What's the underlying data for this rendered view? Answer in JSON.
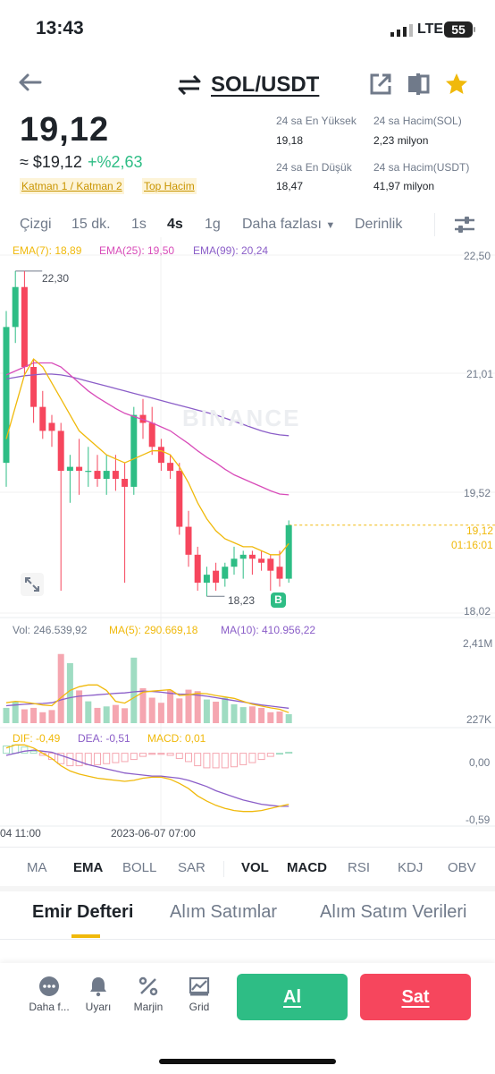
{
  "status_bar": {
    "time": "13:43",
    "network": "LTE",
    "battery": "55"
  },
  "header": {
    "pair": "SOL/USDT",
    "icons": [
      "back-arrow-icon",
      "swap-icon",
      "share-icon",
      "split-view-icon",
      "star-icon"
    ],
    "star_color": "#f0b90b"
  },
  "ticker": {
    "price": "19,12",
    "approx_price": "≈ $19,12",
    "change": "+%2,63",
    "tags": [
      "Katman 1 / Katman 2",
      "Top Hacim"
    ],
    "stats": {
      "high_label": "24 sa En Yüksek",
      "high_value": "19,18",
      "low_label": "24 sa En Düşük",
      "low_value": "18,47",
      "vol_sol_label": "24 sa Hacim(SOL)",
      "vol_sol_value": "2,23 milyon",
      "vol_usdt_label": "24 sa Hacim(USDT)",
      "vol_usdt_value": "41,97 milyon"
    }
  },
  "timeframes": {
    "items": [
      "Çizgi",
      "15 dk.",
      "1s",
      "4s",
      "1g",
      "Daha fazlası",
      "Derinlik"
    ],
    "active": "4s"
  },
  "main_chart": {
    "legend": {
      "ema7": "EMA(7): 18,89",
      "ema25": "EMA(25): 19,50",
      "ema99": "EMA(99): 20,24"
    },
    "y_ticks": [
      "22,50",
      "21,01",
      "19,52",
      "18,02"
    ],
    "current_price": "19,12",
    "countdown": "01:16:01",
    "high_marker": "22,30",
    "low_marker": "18,23",
    "buy_marker": "B",
    "watermark": "BINANCE"
  },
  "volume_chart": {
    "legend": {
      "vol": "Vol: 246.539,92",
      "ma5": "MA(5): 290.669,18",
      "ma10": "MA(10): 410.956,22"
    },
    "y_ticks": [
      "2,41M",
      "227K"
    ]
  },
  "macd_chart": {
    "legend": {
      "dif": "DIF: -0,49",
      "dea": "DEA: -0,51",
      "macd": "MACD: 0,01"
    },
    "y_ticks": [
      "0,00",
      "-0,59"
    ]
  },
  "x_axis": [
    "04 11:00",
    "2023-06-07 07:00"
  ],
  "indicator_tabs": {
    "main": [
      "MA",
      "EMA",
      "BOLL",
      "SAR"
    ],
    "sub": [
      "VOL",
      "MACD",
      "RSI",
      "KDJ",
      "OBV"
    ],
    "active": [
      "EMA",
      "VOL",
      "MACD"
    ]
  },
  "section_tabs": {
    "items": [
      "Emir Defteri",
      "Alım Satımlar",
      "Alım Satım Verileri"
    ],
    "active": "Emir Defteri"
  },
  "bottom_bar": {
    "items": [
      "Daha f...",
      "Uyarı",
      "Marjin",
      "Grid"
    ],
    "buy_label": "Al",
    "sell_label": "Sat"
  },
  "colors": {
    "up": "#2ebd85",
    "down": "#f6465d",
    "accent": "#f0b90b",
    "ema7": "#f0b90b",
    "ema25": "#d84cb9",
    "ema99": "#8b5ec8"
  },
  "chart_data": {
    "type": "candlestick",
    "title": "",
    "ylim": [
      18.02,
      22.5
    ],
    "candles": [
      {
        "o": 19.9,
        "h": 21.8,
        "l": 19.6,
        "c": 21.6
      },
      {
        "o": 21.6,
        "h": 22.3,
        "l": 21.4,
        "c": 22.1
      },
      {
        "o": 22.1,
        "h": 22.3,
        "l": 21.0,
        "c": 21.1
      },
      {
        "o": 21.1,
        "h": 21.2,
        "l": 20.4,
        "c": 20.6
      },
      {
        "o": 20.6,
        "h": 20.8,
        "l": 20.2,
        "c": 20.3
      },
      {
        "o": 20.4,
        "h": 20.5,
        "l": 20.1,
        "c": 20.3
      },
      {
        "o": 20.3,
        "h": 20.4,
        "l": 18.3,
        "c": 19.8
      },
      {
        "o": 19.8,
        "h": 20.0,
        "l": 19.4,
        "c": 19.85
      },
      {
        "o": 19.85,
        "h": 20.2,
        "l": 19.5,
        "c": 19.8
      },
      {
        "o": 19.8,
        "h": 20.1,
        "l": 19.6,
        "c": 19.8
      },
      {
        "o": 19.8,
        "h": 20.0,
        "l": 19.6,
        "c": 19.7
      },
      {
        "o": 19.7,
        "h": 20.0,
        "l": 19.5,
        "c": 19.8
      },
      {
        "o": 19.8,
        "h": 20.0,
        "l": 19.55,
        "c": 19.7
      },
      {
        "o": 19.7,
        "h": 19.9,
        "l": 18.4,
        "c": 19.6
      },
      {
        "o": 19.6,
        "h": 20.6,
        "l": 19.5,
        "c": 20.5
      },
      {
        "o": 20.5,
        "h": 20.7,
        "l": 20.2,
        "c": 20.4
      },
      {
        "o": 20.4,
        "h": 20.6,
        "l": 20.0,
        "c": 20.1
      },
      {
        "o": 20.1,
        "h": 20.2,
        "l": 19.8,
        "c": 19.9
      },
      {
        "o": 19.9,
        "h": 20.0,
        "l": 19.7,
        "c": 19.8
      },
      {
        "o": 19.8,
        "h": 19.9,
        "l": 19.0,
        "c": 19.1
      },
      {
        "o": 19.1,
        "h": 19.3,
        "l": 18.6,
        "c": 18.75
      },
      {
        "o": 18.75,
        "h": 18.85,
        "l": 18.3,
        "c": 18.4
      },
      {
        "o": 18.4,
        "h": 18.6,
        "l": 18.23,
        "c": 18.5
      },
      {
        "o": 18.55,
        "h": 18.65,
        "l": 18.3,
        "c": 18.4
      },
      {
        "o": 18.45,
        "h": 18.65,
        "l": 18.35,
        "c": 18.6
      },
      {
        "o": 18.6,
        "h": 18.85,
        "l": 18.5,
        "c": 18.7
      },
      {
        "o": 18.7,
        "h": 18.8,
        "l": 18.45,
        "c": 18.75
      },
      {
        "o": 18.75,
        "h": 18.8,
        "l": 18.5,
        "c": 18.7
      },
      {
        "o": 18.7,
        "h": 18.8,
        "l": 18.55,
        "c": 18.65
      },
      {
        "o": 18.7,
        "h": 18.75,
        "l": 18.3,
        "c": 18.55
      },
      {
        "o": 18.6,
        "h": 18.8,
        "l": 18.35,
        "c": 18.45
      },
      {
        "o": 18.45,
        "h": 19.18,
        "l": 18.4,
        "c": 19.12
      }
    ],
    "ema7": [
      20.2,
      20.6,
      21.0,
      21.2,
      21.1,
      20.9,
      20.7,
      20.5,
      20.3,
      20.2,
      20.1,
      20.0,
      19.95,
      19.9,
      19.95,
      20.0,
      20.05,
      20.05,
      20.0,
      19.85,
      19.65,
      19.4,
      19.2,
      19.05,
      18.95,
      18.9,
      18.85,
      18.85,
      18.8,
      18.75,
      18.75,
      18.89
    ],
    "ema25": [
      21.0,
      21.05,
      21.1,
      21.15,
      21.15,
      21.15,
      21.1,
      21.0,
      20.9,
      20.8,
      20.72,
      20.65,
      20.58,
      20.52,
      20.48,
      20.44,
      20.4,
      20.35,
      20.3,
      20.22,
      20.14,
      20.05,
      19.97,
      19.9,
      19.82,
      19.75,
      19.7,
      19.65,
      19.6,
      19.55,
      19.51,
      19.5
    ],
    "ema99": [
      20.95,
      20.97,
      20.99,
      21.0,
      21.01,
      21.01,
      21.0,
      20.98,
      20.95,
      20.92,
      20.89,
      20.86,
      20.83,
      20.8,
      20.77,
      20.74,
      20.71,
      20.68,
      20.65,
      20.62,
      20.59,
      20.56,
      20.53,
      20.5,
      20.46,
      20.42,
      20.38,
      20.34,
      20.3,
      20.27,
      20.25,
      20.24
    ],
    "volume_ylim": [
      0,
      2410000
    ],
    "volume": [
      420000,
      600000,
      380000,
      420000,
      300000,
      360000,
      1900000,
      1650000,
      900000,
      600000,
      420000,
      460000,
      500000,
      410000,
      1800000,
      960000,
      700000,
      560000,
      900000,
      680000,
      920000,
      880000,
      650000,
      590000,
      700000,
      520000,
      440000,
      460000,
      420000,
      300000,
      320000,
      246539
    ],
    "vol_ma5": [
      560000,
      600000,
      580000,
      540000,
      500000,
      480000,
      700000,
      900000,
      1000000,
      1050000,
      1050000,
      900000,
      600000,
      550000,
      700000,
      850000,
      880000,
      900000,
      920000,
      760000,
      780000,
      820000,
      810000,
      760000,
      720000,
      680000,
      600000,
      520000,
      470000,
      420000,
      380000,
      290669
    ],
    "vol_ma10": [
      480000,
      500000,
      520000,
      530000,
      540000,
      560000,
      640000,
      700000,
      740000,
      760000,
      780000,
      800000,
      820000,
      830000,
      860000,
      880000,
      870000,
      850000,
      820000,
      800000,
      790000,
      770000,
      740000,
      700000,
      660000,
      620000,
      580000,
      540000,
      500000,
      470000,
      440000,
      410956
    ],
    "macd_ylim": [
      -0.7,
      0.1
    ],
    "dif": [
      0.05,
      0.08,
      0.08,
      0.05,
      0.0,
      -0.05,
      -0.12,
      -0.17,
      -0.2,
      -0.22,
      -0.24,
      -0.25,
      -0.26,
      -0.27,
      -0.26,
      -0.24,
      -0.23,
      -0.23,
      -0.25,
      -0.29,
      -0.34,
      -0.41,
      -0.46,
      -0.5,
      -0.53,
      -0.55,
      -0.56,
      -0.56,
      -0.55,
      -0.53,
      -0.51,
      -0.49
    ],
    "dea": [
      -0.02,
      0.0,
      0.02,
      0.03,
      0.02,
      0.01,
      -0.02,
      -0.05,
      -0.08,
      -0.11,
      -0.13,
      -0.15,
      -0.17,
      -0.19,
      -0.2,
      -0.21,
      -0.22,
      -0.22,
      -0.23,
      -0.24,
      -0.26,
      -0.29,
      -0.32,
      -0.36,
      -0.39,
      -0.42,
      -0.45,
      -0.47,
      -0.49,
      -0.5,
      -0.51,
      -0.51
    ],
    "macd_hist": [
      0.07,
      0.08,
      0.06,
      0.02,
      -0.02,
      -0.06,
      -0.1,
      -0.12,
      -0.12,
      -0.11,
      -0.11,
      -0.1,
      -0.09,
      -0.08,
      -0.06,
      -0.03,
      -0.01,
      -0.01,
      -0.02,
      -0.05,
      -0.08,
      -0.12,
      -0.14,
      -0.14,
      -0.14,
      -0.13,
      -0.11,
      -0.09,
      -0.06,
      -0.03,
      0.0,
      0.01
    ]
  }
}
